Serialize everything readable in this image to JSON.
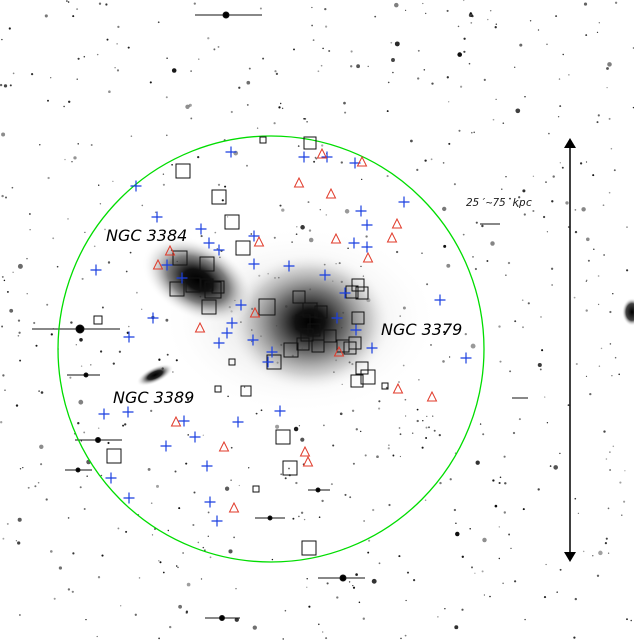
{
  "labels": {
    "ngc3384": "NGC 3384",
    "ngc3379": "NGC 3379",
    "ngc3389": "NGC 3389",
    "scale": "25′~75 kpc"
  },
  "colors": {
    "circle": "#00dd00",
    "square": "#111111",
    "plus": "#1a3fe0",
    "triangle": "#e03a2a",
    "arrow": "#000000"
  },
  "markers": {
    "squares_count": 44,
    "plus_count": 48,
    "triangle_count": 21
  }
}
